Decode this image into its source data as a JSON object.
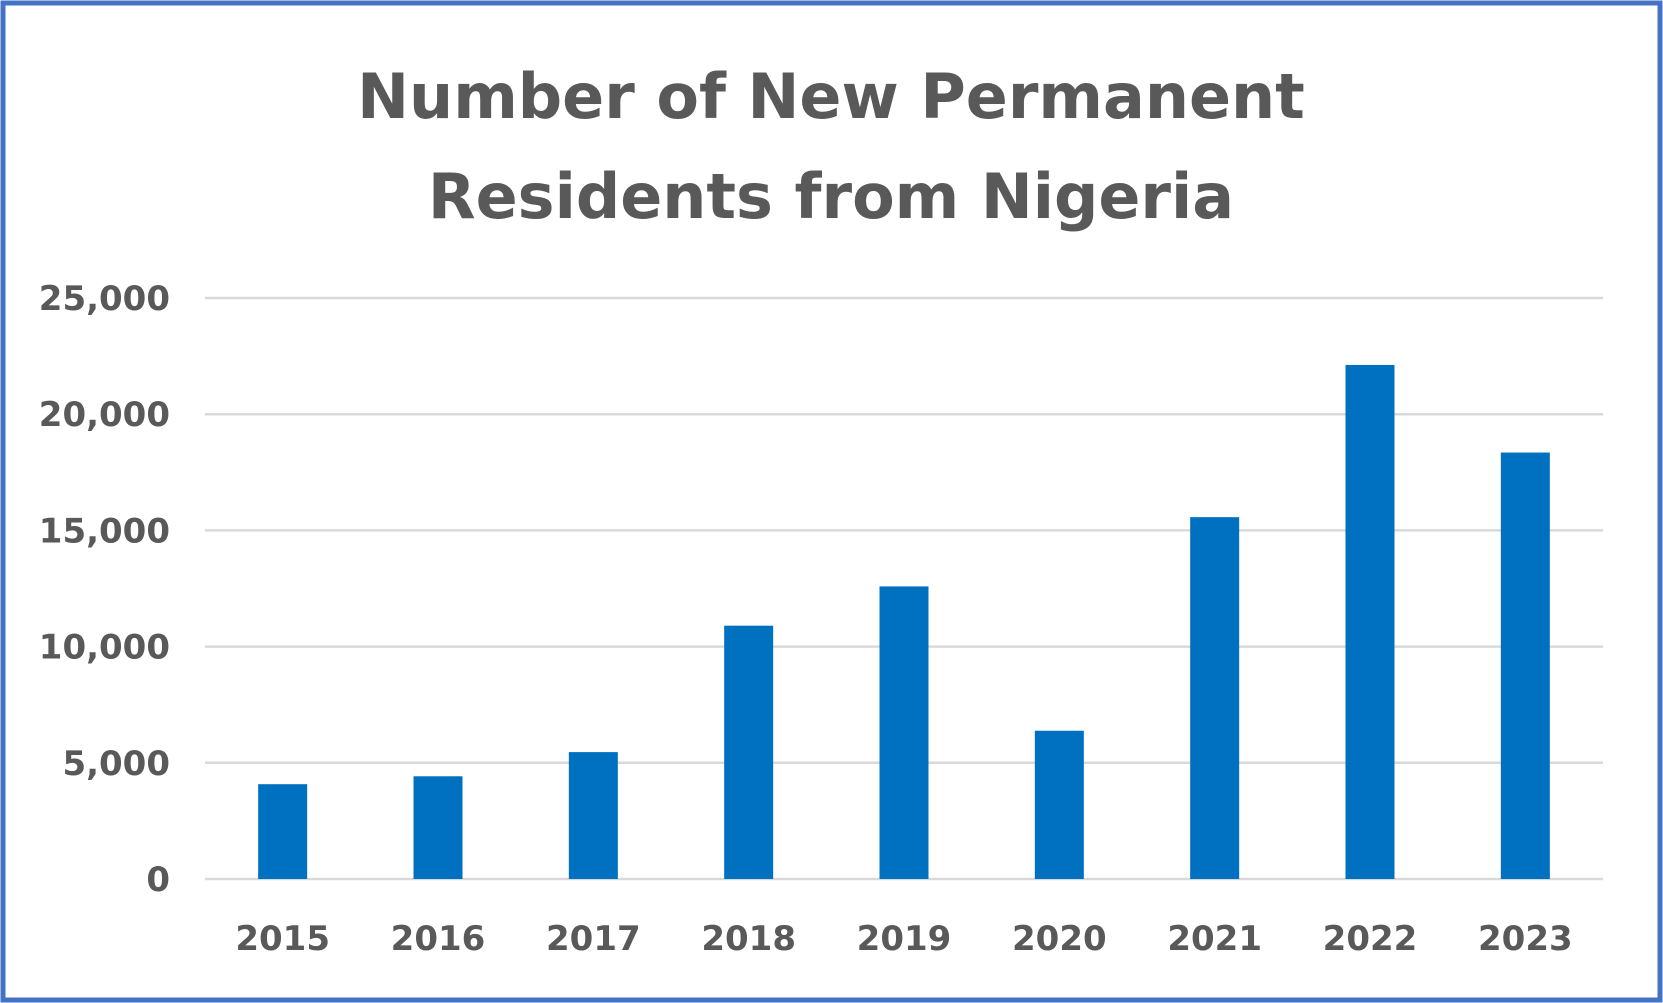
{
  "chart_data": {
    "type": "bar",
    "title": "Number of New Permanent Residents from Nigeria",
    "title_lines": [
      "Number of New Permanent",
      "Residents from Nigeria"
    ],
    "xlabel": "",
    "ylabel": "",
    "categories": [
      "2015",
      "2016",
      "2017",
      "2018",
      "2019",
      "2020",
      "2021",
      "2022",
      "2023"
    ],
    "values": [
      4080,
      4420,
      5460,
      10900,
      12590,
      6380,
      15570,
      22120,
      18350
    ],
    "ylim": [
      0,
      25000
    ],
    "yticks": [
      0,
      5000,
      10000,
      15000,
      20000,
      25000
    ],
    "ytick_labels": [
      "0",
      "5,000",
      "10,000",
      "15,000",
      "20,000",
      "25,000"
    ],
    "grid": true,
    "legend": "none",
    "colors": {
      "bar": "#0070C0",
      "border": "#4472C4",
      "grid": "#D9D9D9",
      "text": "#595959"
    }
  }
}
